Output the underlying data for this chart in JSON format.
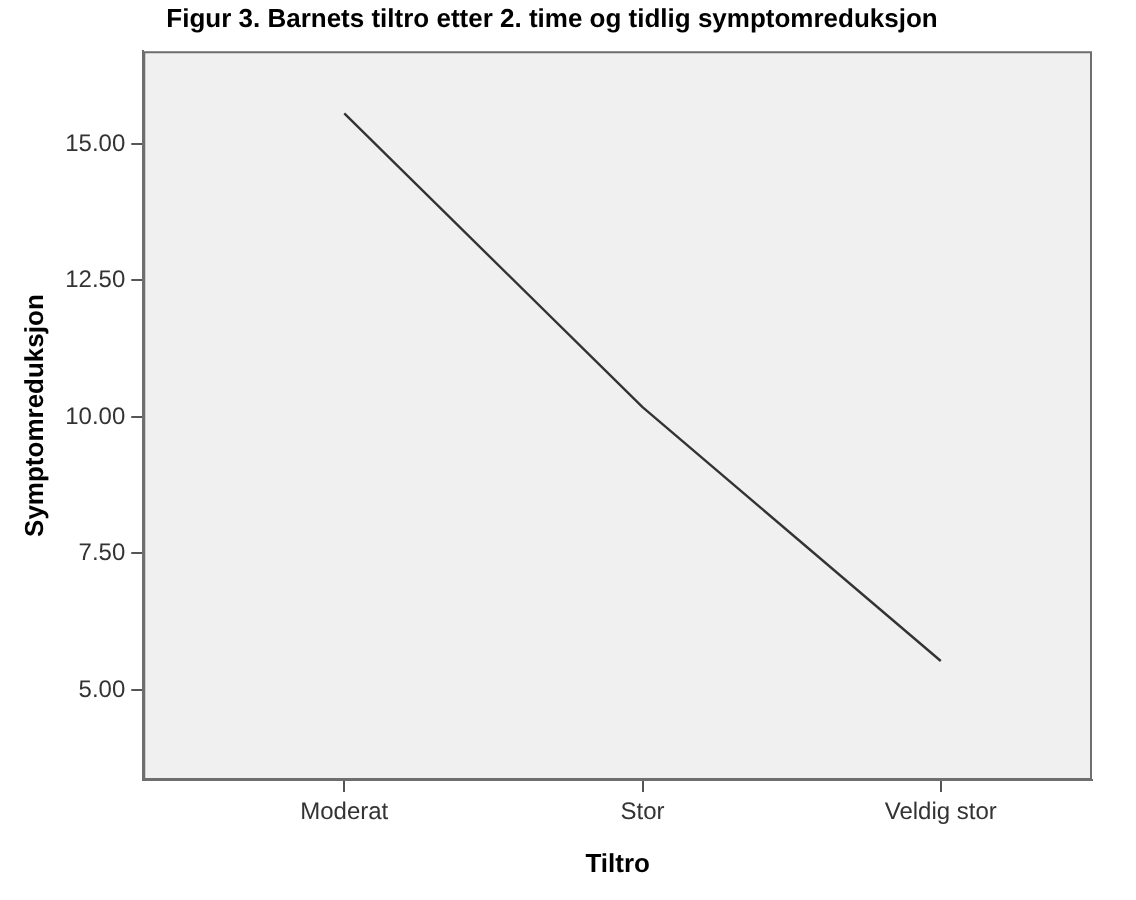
{
  "chart_data": {
    "type": "line",
    "title": "Figur 3. Barnets tiltro etter 2. time og tidlig symptomreduksjon",
    "xlabel": "Tiltro",
    "ylabel": "Symptomreduksjon",
    "categories": [
      "Moderat",
      "Stor",
      "Veldig stor"
    ],
    "series": [
      {
        "color": "#333333",
        "values": [
          15.56,
          10.18,
          5.53
        ]
      }
    ],
    "ylim": [
      3.35,
      16.7
    ],
    "yticks": [
      {
        "value": 5,
        "label": "5.00"
      },
      {
        "value": 7.5,
        "label": "7.50"
      },
      {
        "value": 10,
        "label": "10.00"
      },
      {
        "value": 12.5,
        "label": "12.50"
      },
      {
        "value": 15,
        "label": "15.00"
      }
    ],
    "grid": false,
    "legend": false,
    "marker": "none",
    "line_style": "solid"
  }
}
